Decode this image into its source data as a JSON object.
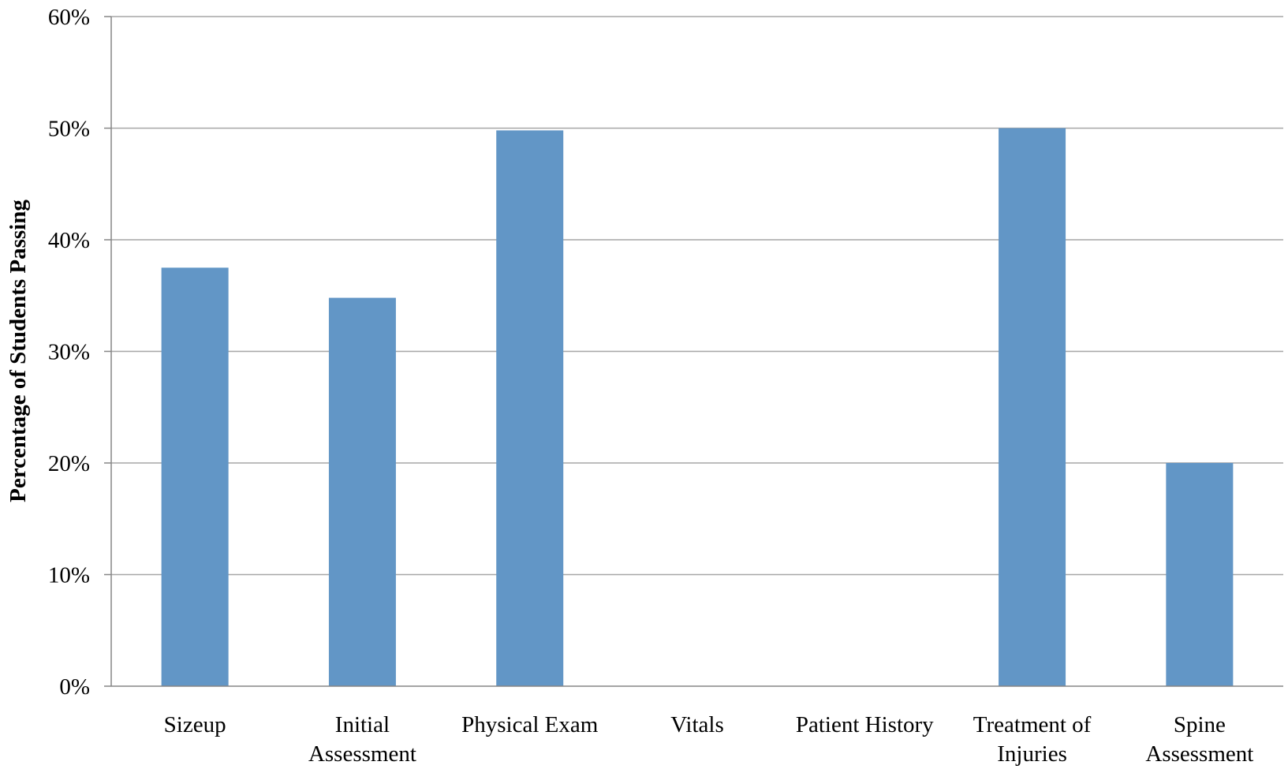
{
  "chart_data": {
    "type": "bar",
    "title": "",
    "xlabel": "",
    "ylabel": "Percentage of Students Passing",
    "categories": [
      [
        "Sizeup"
      ],
      [
        "Initial",
        "Assessment"
      ],
      [
        "Physical Exam"
      ],
      [
        "Vitals"
      ],
      [
        "Patient History"
      ],
      [
        "Treatment of",
        "Injuries"
      ],
      [
        "Spine",
        "Assessment"
      ]
    ],
    "values": [
      37.5,
      34.8,
      49.8,
      0,
      0,
      50,
      20
    ],
    "ylim": [
      0,
      60
    ],
    "yticks": [
      "0%",
      "10%",
      "20%",
      "30%",
      "40%",
      "50%",
      "60%"
    ],
    "grid": true,
    "legend": "none",
    "colors": {
      "bar": "#6296c6",
      "grid": "#a6a6a6",
      "axis": "#868686"
    }
  }
}
